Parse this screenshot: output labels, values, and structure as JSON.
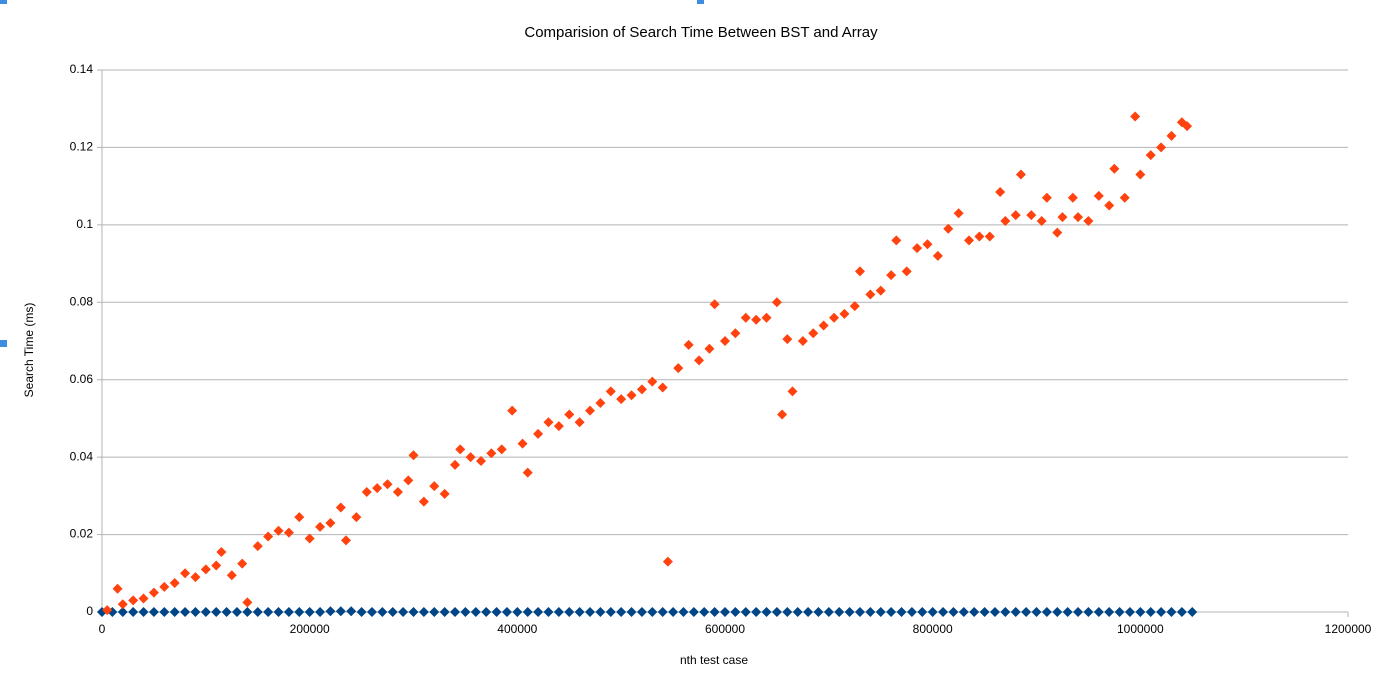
{
  "chart_data": {
    "type": "scatter",
    "title": "Comparision of Search Time Between BST and Array",
    "x_label": "nth test case",
    "y_label": "Search Time (ms)",
    "xlim": [
      0,
      1200000
    ],
    "xticks": [
      0,
      200000,
      400000,
      600000,
      800000,
      1000000,
      1200000
    ],
    "ylim": [
      0,
      0.14
    ],
    "yticks": [
      0,
      0.02,
      0.04,
      0.06,
      0.08,
      0.1,
      0.12,
      0.14
    ],
    "grid": true,
    "series": [
      {
        "color": "#ff420e",
        "x": [
          5000,
          15000,
          20000,
          30000,
          40000,
          50000,
          60000,
          70000,
          80000,
          90000,
          100000,
          110000,
          115000,
          125000,
          135000,
          140000,
          150000,
          160000,
          170000,
          180000,
          190000,
          200000,
          210000,
          220000,
          230000,
          235000,
          245000,
          255000,
          265000,
          275000,
          285000,
          295000,
          300000,
          310000,
          320000,
          330000,
          340000,
          345000,
          355000,
          365000,
          375000,
          385000,
          395000,
          405000,
          410000,
          420000,
          430000,
          440000,
          450000,
          460000,
          470000,
          480000,
          490000,
          500000,
          510000,
          520000,
          530000,
          540000,
          545000,
          555000,
          565000,
          575000,
          585000,
          590000,
          600000,
          610000,
          620000,
          630000,
          640000,
          650000,
          655000,
          660000,
          665000,
          675000,
          685000,
          695000,
          705000,
          715000,
          725000,
          730000,
          740000,
          750000,
          760000,
          765000,
          775000,
          785000,
          795000,
          805000,
          815000,
          825000,
          835000,
          845000,
          855000,
          865000,
          870000,
          880000,
          885000,
          895000,
          905000,
          910000,
          920000,
          925000,
          935000,
          940000,
          950000,
          960000,
          970000,
          975000,
          985000,
          995000,
          1000000,
          1010000,
          1020000,
          1030000,
          1040000,
          1045000
        ],
        "values": [
          0.0005,
          0.006,
          0.002,
          0.003,
          0.0035,
          0.005,
          0.0065,
          0.0075,
          0.01,
          0.009,
          0.011,
          0.012,
          0.0155,
          0.0095,
          0.0125,
          0.0025,
          0.017,
          0.0195,
          0.021,
          0.0205,
          0.0245,
          0.019,
          0.022,
          0.023,
          0.027,
          0.0185,
          0.0245,
          0.031,
          0.032,
          0.033,
          0.031,
          0.034,
          0.0405,
          0.0285,
          0.0325,
          0.0305,
          0.038,
          0.042,
          0.04,
          0.039,
          0.041,
          0.042,
          0.052,
          0.0435,
          0.036,
          0.046,
          0.049,
          0.048,
          0.051,
          0.049,
          0.052,
          0.054,
          0.057,
          0.055,
          0.056,
          0.0575,
          0.0595,
          0.058,
          0.013,
          0.063,
          0.069,
          0.065,
          0.068,
          0.0795,
          0.07,
          0.072,
          0.076,
          0.0755,
          0.076,
          0.08,
          0.051,
          0.0705,
          0.057,
          0.07,
          0.072,
          0.074,
          0.076,
          0.077,
          0.079,
          0.088,
          0.082,
          0.083,
          0.087,
          0.096,
          0.088,
          0.094,
          0.095,
          0.092,
          0.099,
          0.103,
          0.096,
          0.097,
          0.097,
          0.1085,
          0.101,
          0.1025,
          0.113,
          0.1025,
          0.101,
          0.107,
          0.098,
          0.102,
          0.107,
          0.102,
          0.101,
          0.1075,
          0.105,
          0.1145,
          0.107,
          0.128,
          0.113,
          0.118,
          0.12,
          0.123,
          0.1265,
          0.1255
        ]
      },
      {
        "color": "#004586",
        "x": [
          0,
          10000,
          20000,
          30000,
          40000,
          50000,
          60000,
          70000,
          80000,
          90000,
          100000,
          110000,
          120000,
          130000,
          140000,
          150000,
          160000,
          170000,
          180000,
          190000,
          200000,
          210000,
          220000,
          230000,
          240000,
          250000,
          260000,
          270000,
          280000,
          290000,
          300000,
          310000,
          320000,
          330000,
          340000,
          350000,
          360000,
          370000,
          380000,
          390000,
          400000,
          410000,
          420000,
          430000,
          440000,
          450000,
          460000,
          470000,
          480000,
          490000,
          500000,
          510000,
          520000,
          530000,
          540000,
          550000,
          560000,
          570000,
          580000,
          590000,
          600000,
          610000,
          620000,
          630000,
          640000,
          650000,
          660000,
          670000,
          680000,
          690000,
          700000,
          710000,
          720000,
          730000,
          740000,
          750000,
          760000,
          770000,
          780000,
          790000,
          800000,
          810000,
          820000,
          830000,
          840000,
          850000,
          860000,
          870000,
          880000,
          890000,
          900000,
          910000,
          920000,
          930000,
          940000,
          950000,
          960000,
          970000,
          980000,
          990000,
          1000000,
          1010000,
          1020000,
          1030000,
          1040000,
          1050000
        ],
        "values": [
          0,
          0,
          0,
          0,
          0,
          0,
          0,
          0,
          0,
          0,
          0,
          0,
          0,
          0,
          0,
          0,
          0,
          0,
          0,
          0,
          0,
          0,
          0.0002,
          0.0002,
          0.0002,
          0,
          0,
          0,
          0,
          0,
          0,
          0,
          0,
          0,
          0,
          0,
          0,
          0,
          0,
          0,
          0,
          0,
          0,
          0,
          0,
          0,
          0,
          0,
          0,
          0,
          0,
          0,
          0,
          0,
          0,
          0,
          0,
          0,
          0,
          0,
          0,
          0,
          0,
          0,
          0,
          0,
          0,
          0,
          0,
          0,
          0,
          0,
          0,
          0,
          0,
          0,
          0,
          0,
          0,
          0,
          0,
          0,
          0,
          0,
          0,
          0,
          0,
          0,
          0,
          0,
          0,
          0,
          0,
          0,
          0,
          0,
          0,
          0,
          0,
          0,
          0,
          0,
          0,
          0,
          0,
          0
        ]
      }
    ]
  }
}
